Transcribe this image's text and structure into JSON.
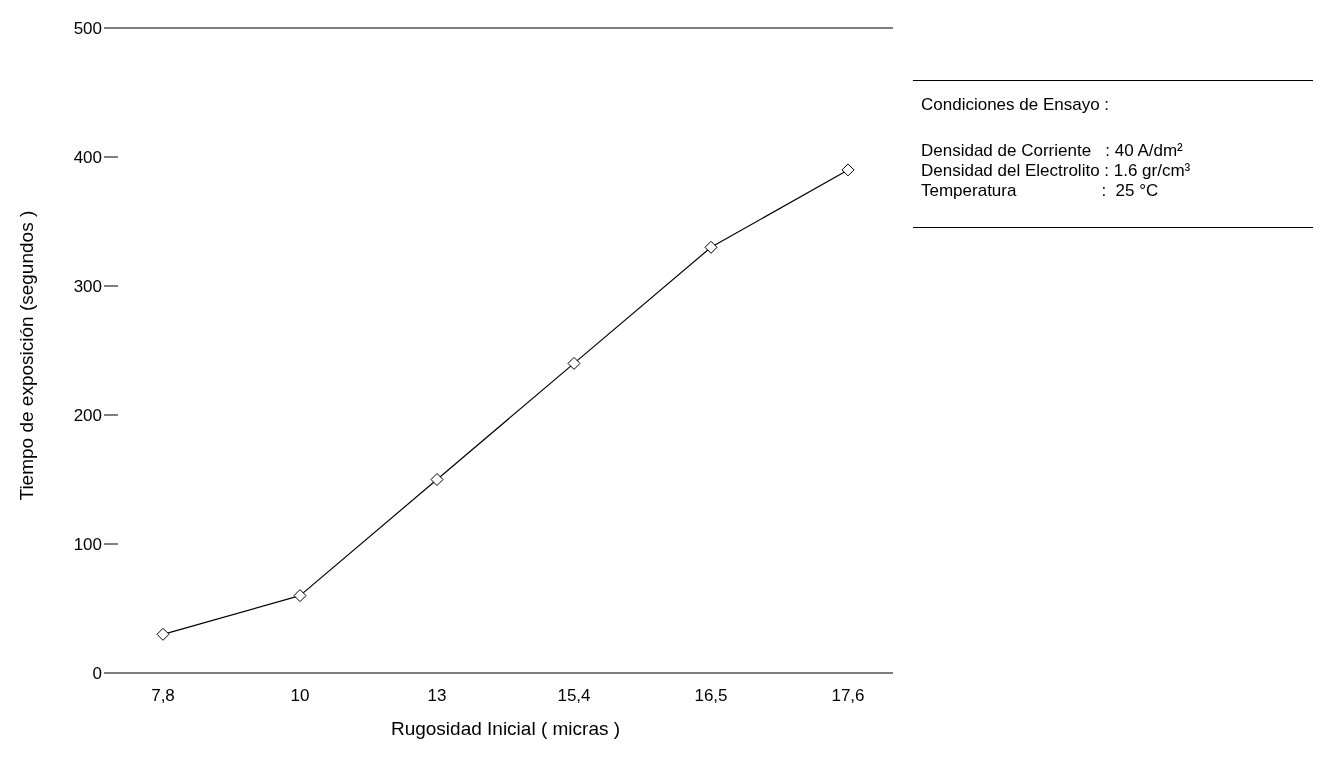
{
  "chart_data": {
    "type": "line",
    "xlabel": "Rugosidad Inicial ( micras )",
    "ylabel": "Tiempo de exposición (segundos )",
    "categories": [
      "7,8",
      "10",
      "13",
      "15,4",
      "16,5",
      "17,6"
    ],
    "series": [
      {
        "color": "#000000",
        "values": [
          30,
          60,
          150,
          240,
          330,
          390
        ]
      }
    ],
    "ylim": [
      0,
      500
    ],
    "yticks": [
      0,
      100,
      200,
      300,
      400,
      500
    ],
    "grid": false,
    "legend": false,
    "marker": "diamond",
    "line_style": "solid",
    "annotations": [
      "Condiciones de Ensayo :",
      "Densidad de Corriente   : 40 A/dm²",
      "Densidad del Electrolito : 1.6 gr/cm³",
      "Temperatura                  :  25 °C"
    ]
  }
}
